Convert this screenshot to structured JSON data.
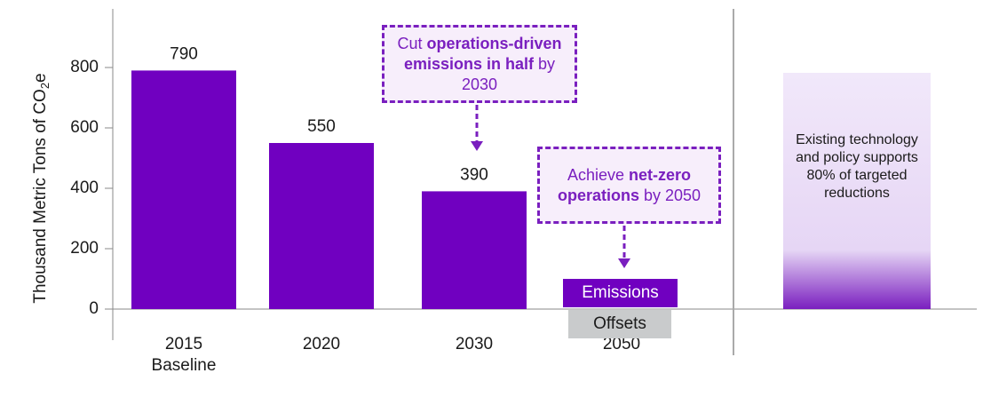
{
  "chart_data": {
    "type": "bar",
    "y_label_parts": [
      "Thousand Metric Tons of CO",
      "2",
      "e"
    ],
    "categories": [
      "2015",
      "2020",
      "2030",
      "2050"
    ],
    "baseline_label": "Baseline",
    "values": [
      790,
      550,
      390,
      null
    ],
    "color": "#7000c0",
    "ylim": [
      0,
      800
    ],
    "yticks": [
      0,
      200,
      400,
      600,
      800
    ],
    "annotations": [
      {
        "parts": [
          {
            "text": "Cut "
          },
          {
            "text": "operations-driven emissions in half",
            "bold": true
          },
          {
            "text": " by 2030"
          }
        ]
      },
      {
        "parts": [
          {
            "text": "Achieve "
          },
          {
            "text": "net-zero operations",
            "bold": true
          },
          {
            "text": " by 2050"
          }
        ]
      }
    ],
    "legend": [
      "Emissions",
      "Offsets"
    ],
    "side_note": "Existing technology and policy supports 80% of targeted reductions"
  }
}
